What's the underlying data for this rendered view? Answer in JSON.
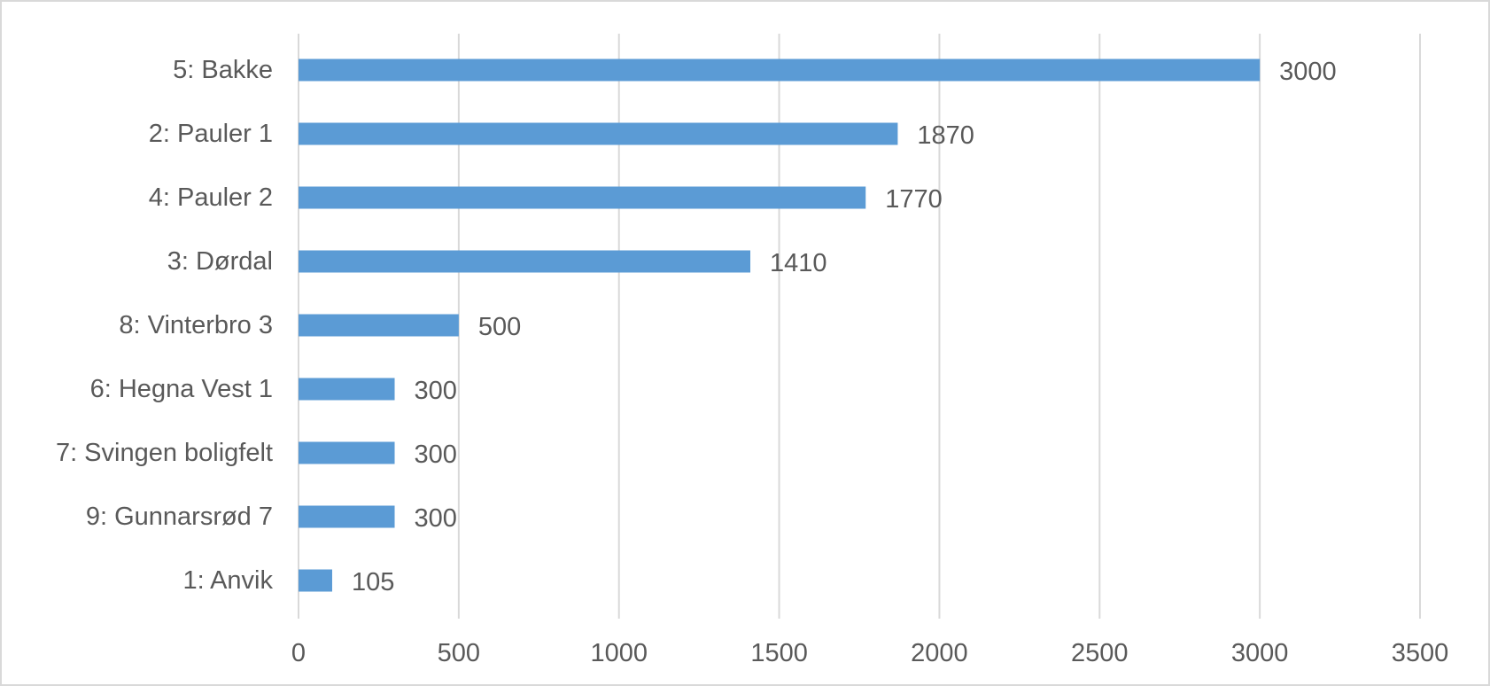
{
  "chart_data": {
    "type": "bar",
    "orientation": "horizontal",
    "title": "",
    "xlabel": "",
    "ylabel": "",
    "categories": [
      "5: Bakke",
      "2: Pauler 1",
      "4: Pauler 2",
      "3: Dørdal",
      "8: Vinterbro 3",
      "6: Hegna Vest 1",
      "7: Svingen boligfelt",
      "9: Gunnarsrød 7",
      "1: Anvik"
    ],
    "values": [
      3000,
      1870,
      1770,
      1410,
      500,
      300,
      300,
      300,
      105
    ],
    "xlim": [
      0,
      3500
    ],
    "xticks": [
      0,
      500,
      1000,
      1500,
      2000,
      2500,
      3000,
      3500
    ],
    "grid": "vertical",
    "legend": "none",
    "data_labels": true,
    "bar_color": "#5b9bd5",
    "grid_color": "#d9d9d9",
    "text_color": "#595959"
  }
}
